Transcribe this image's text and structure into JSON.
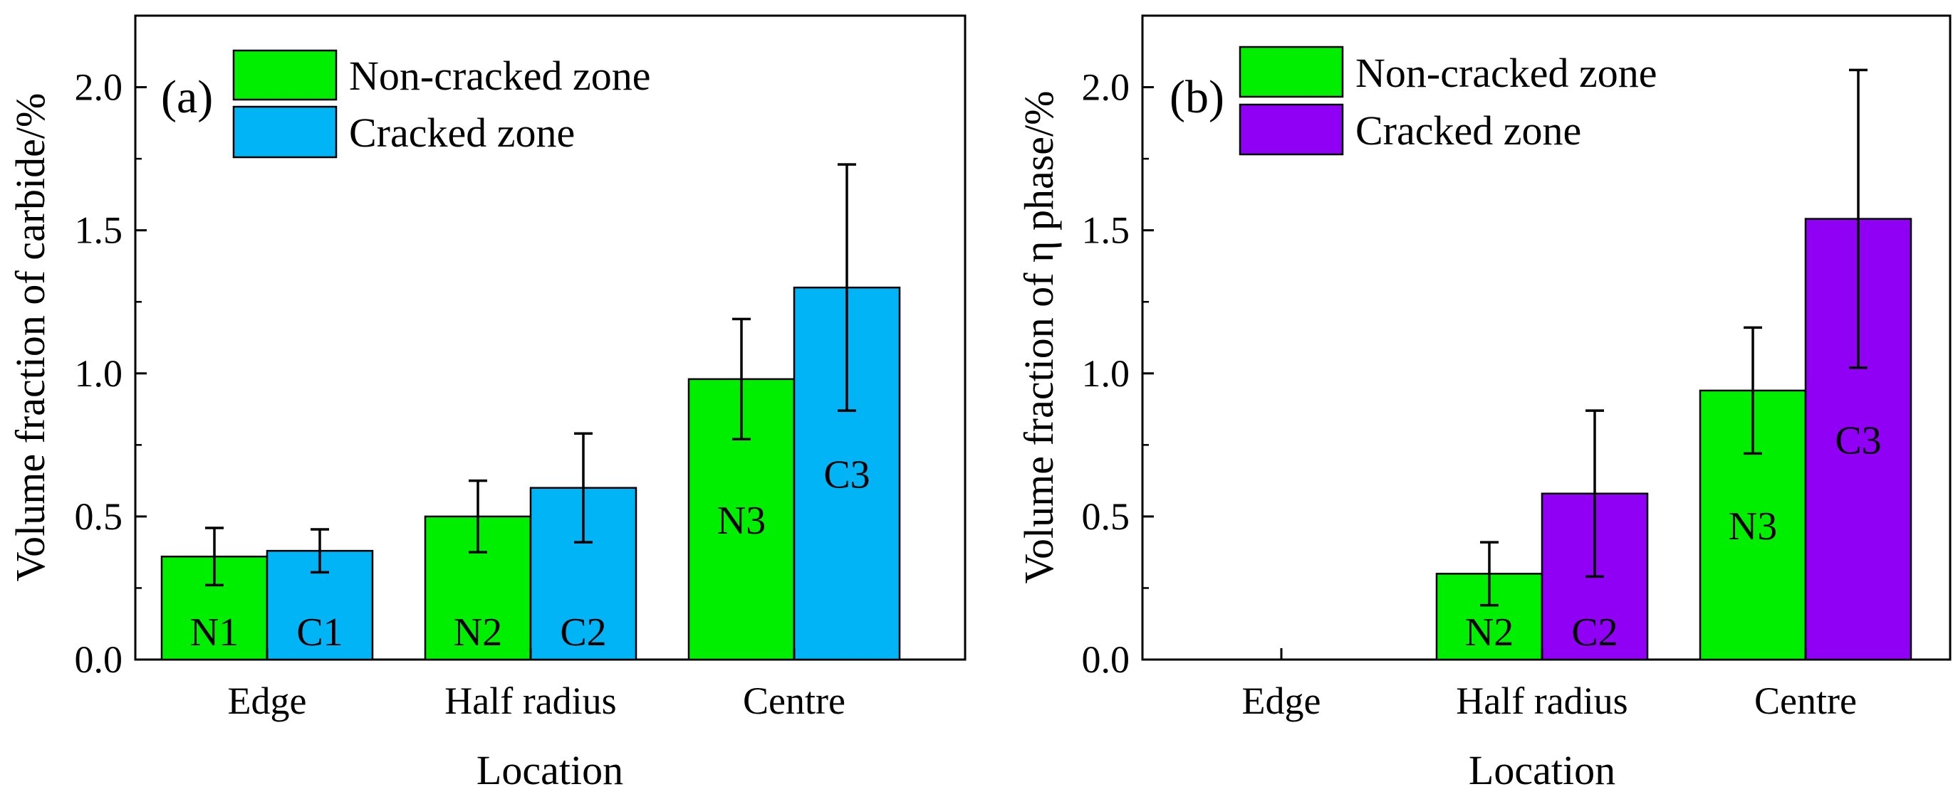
{
  "chart_data": [
    {
      "type": "bar",
      "panel_label": "(a)",
      "title": "",
      "xlabel": "Location",
      "ylabel": "Volume fraction of carbide/%",
      "categories": [
        "Edge",
        "Half radius",
        "Centre"
      ],
      "ylim": [
        0,
        2.25
      ],
      "yticks": [
        0.0,
        0.5,
        1.0,
        1.5,
        2.0
      ],
      "ytick_labels": [
        "0.0",
        "0.5",
        "1.0",
        "1.5",
        "2.0"
      ],
      "legend_position": "top-left",
      "series": [
        {
          "name": "Non-cracked zone",
          "color": "#00ee00",
          "values": [
            0.36,
            0.5,
            0.98
          ],
          "errors": [
            0.1,
            0.125,
            0.21
          ],
          "bar_labels": [
            "N1",
            "N2",
            "N3"
          ]
        },
        {
          "name": "Cracked zone",
          "color": "#00b4f5",
          "values": [
            0.38,
            0.6,
            1.3
          ],
          "errors": [
            0.075,
            0.19,
            0.43
          ],
          "bar_labels": [
            "C1",
            "C2",
            "C3"
          ]
        }
      ]
    },
    {
      "type": "bar",
      "panel_label": "(b)",
      "title": "",
      "xlabel": "Location",
      "ylabel": "Volume fraction of η phase/%",
      "categories": [
        "Edge",
        "Half radius",
        "Centre"
      ],
      "ylim": [
        0,
        2.25
      ],
      "yticks": [
        0.0,
        0.5,
        1.0,
        1.5,
        2.0
      ],
      "ytick_labels": [
        "0.0",
        "0.5",
        "1.0",
        "1.5",
        "2.0"
      ],
      "legend_position": "top-left",
      "series": [
        {
          "name": "Non-cracked zone",
          "color": "#00ee00",
          "values": [
            null,
            0.3,
            0.94
          ],
          "errors": [
            null,
            0.11,
            0.22
          ],
          "bar_labels": [
            "",
            "N2",
            "N3"
          ]
        },
        {
          "name": "Cracked zone",
          "color": "#9000f5",
          "values": [
            null,
            0.58,
            1.54
          ],
          "errors": [
            null,
            0.29,
            0.52
          ],
          "bar_labels": [
            "",
            "C2",
            "C3"
          ]
        }
      ]
    }
  ]
}
